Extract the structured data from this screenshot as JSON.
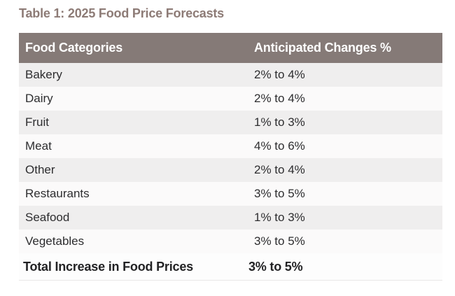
{
  "title": "Table 1: 2025 Food Price Forecasts",
  "table": {
    "headers": [
      "Food Categories",
      "Anticipated Changes %"
    ],
    "rows": [
      {
        "category": "Bakery",
        "change": "2% to 4%"
      },
      {
        "category": "Dairy",
        "change": "2% to 4%"
      },
      {
        "category": "Fruit",
        "change": "1% to 3%"
      },
      {
        "category": "Meat",
        "change": "4% to 6%"
      },
      {
        "category": "Other",
        "change": "2% to 4%"
      },
      {
        "category": "Restaurants",
        "change": "3% to 5%"
      },
      {
        "category": "Seafood",
        "change": "1% to 3%"
      },
      {
        "category": "Vegetables",
        "change": "3% to 5%"
      }
    ],
    "footer": {
      "label": "Total Increase in Food Prices",
      "value": "3% to 5%"
    }
  },
  "chart_data": {
    "type": "table",
    "title": "Table 1: 2025 Food Price Forecasts",
    "columns": [
      "Food Categories",
      "Anticipated Changes %"
    ],
    "categories": [
      "Bakery",
      "Dairy",
      "Fruit",
      "Meat",
      "Other",
      "Restaurants",
      "Seafood",
      "Vegetables"
    ],
    "values": [
      "2% to 4%",
      "2% to 4%",
      "1% to 3%",
      "4% to 6%",
      "2% to 4%",
      "3% to 5%",
      "1% to 3%",
      "3% to 5%"
    ],
    "total_label": "Total Increase in Food Prices",
    "total_value": "3% to 5%"
  },
  "colors": {
    "header_bg": "#857a77",
    "title": "#8d7b76",
    "row_bg": "#fbfafa",
    "row_alt_bg": "#efeeee",
    "text": "#2d2d2f",
    "footer_text": "#222224",
    "border": "#e9e7e7",
    "header_text": "#ffffff"
  }
}
